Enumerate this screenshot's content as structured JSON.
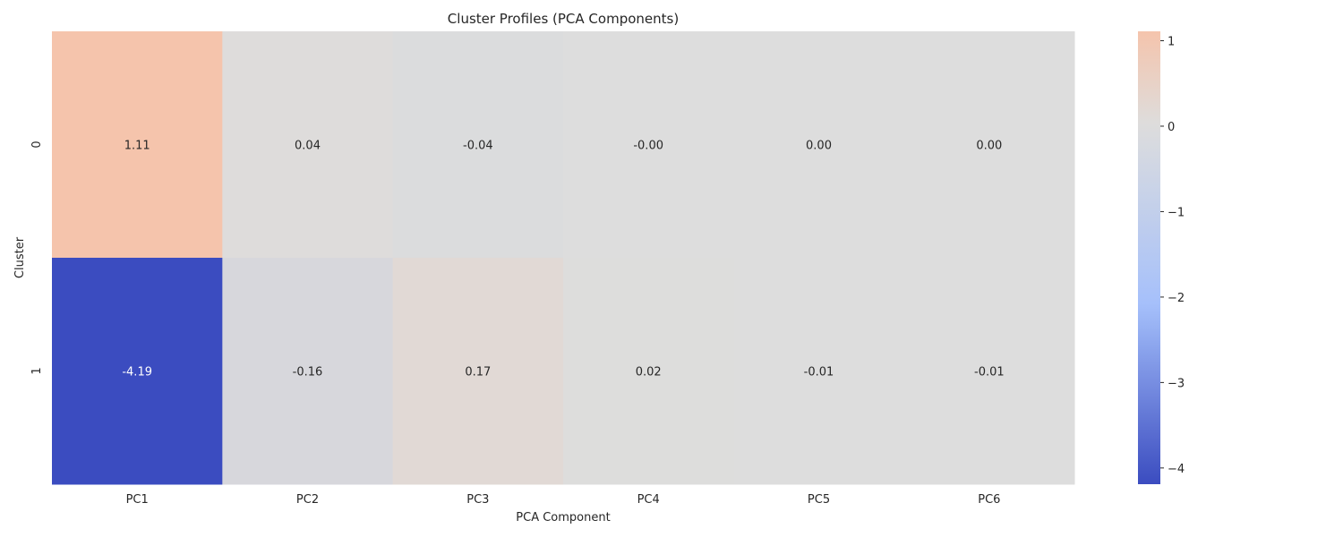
{
  "chart_data": {
    "type": "heatmap",
    "title": "Cluster Profiles (PCA Components)",
    "xlabel": "PCA Component",
    "ylabel": "Cluster",
    "x_categories": [
      "PC1",
      "PC2",
      "PC3",
      "PC4",
      "PC5",
      "PC6"
    ],
    "y_categories": [
      "0",
      "1"
    ],
    "values": [
      [
        1.11,
        0.04,
        -0.04,
        -0.0,
        0.0,
        0.0
      ],
      [
        -4.19,
        -0.16,
        0.17,
        0.02,
        -0.01,
        -0.01
      ]
    ],
    "value_labels": [
      [
        "1.11",
        "0.04",
        "-0.04",
        "-0.00",
        "0.00",
        "0.00"
      ],
      [
        "-4.19",
        "-0.16",
        "0.17",
        "0.02",
        "-0.01",
        "-0.01"
      ]
    ],
    "colormap": "coolwarm",
    "center": 0,
    "vmin": -4.19,
    "vmax": 1.11,
    "colorbar_ticks": [
      1,
      0,
      -1,
      -2,
      -3,
      -4
    ],
    "colorbar_tick_labels": [
      "1",
      "0",
      "−1",
      "−2",
      "−3",
      "−4"
    ],
    "colors": {
      "min": "#3b4cc0",
      "mid": "#dddddd",
      "max": "#f5c4ac"
    },
    "legend_placement": "right",
    "grid": false
  }
}
